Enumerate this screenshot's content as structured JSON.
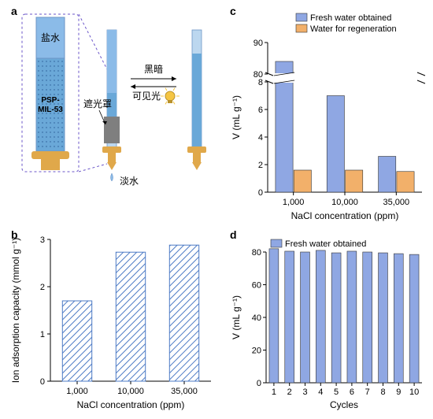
{
  "panel_a": {
    "label": "a",
    "brine_label": "盐水",
    "shade_label": "遮光罩",
    "material_label": "PSP-\nMIL-53",
    "freshwater_label": "淡水",
    "dark_label": "黑暗",
    "visible_label": "可见光",
    "colors": {
      "tube_light": "#bcd7ef",
      "tube_water": "#8bbbe8",
      "material_fill": "#6aa8d8",
      "base": "#e0a84a",
      "shade": "#7f7f7f",
      "callout": "#6b56c9",
      "text": "#000000",
      "bulb": "#f5c542"
    }
  },
  "panel_b": {
    "label": "b",
    "type": "bar",
    "categories": [
      "1,000",
      "10,000",
      "35,000"
    ],
    "values": [
      1.7,
      2.73,
      2.88
    ],
    "bar_color": "#7ea6dd",
    "hatch_color": "#4d7bc5",
    "xlabel": "NaCl concentration (ppm)",
    "ylabel": "Ion adsorption capacity (mmol g⁻¹)",
    "ylim": [
      0,
      3
    ],
    "y_ticks": [
      0,
      1,
      2,
      3
    ],
    "label_fontsize": 12,
    "tick_fontsize": 11,
    "axis_color": "#000000",
    "background": "#ffffff",
    "bar_width": 0.55
  },
  "panel_c": {
    "label": "c",
    "type": "bar-grouped-broken",
    "categories": [
      "1,000",
      "10,000",
      "35,000"
    ],
    "series": [
      {
        "name": "Fresh water obtained",
        "color": "#8fa7e3",
        "values": [
          84,
          7.0,
          2.6
        ]
      },
      {
        "name": "Water for regeneration",
        "color": "#f2b06a",
        "values": [
          1.6,
          1.6,
          1.5
        ]
      }
    ],
    "xlabel": "NaCl concentration (ppm)",
    "ylabel": "V (mL g⁻¹)",
    "lower_ylim": [
      0,
      8
    ],
    "lower_ticks": [
      0,
      2,
      4,
      6,
      8
    ],
    "upper_ylim": [
      80,
      90
    ],
    "upper_ticks": [
      80,
      90
    ],
    "label_fontsize": 12,
    "tick_fontsize": 11,
    "axis_color": "#000000",
    "legend_fontsize": 11,
    "bar_width": 0.34
  },
  "panel_d": {
    "label": "d",
    "type": "bar",
    "categories": [
      "1",
      "2",
      "3",
      "4",
      "5",
      "6",
      "7",
      "8",
      "9",
      "10"
    ],
    "values": [
      82,
      80.5,
      80,
      81,
      79.5,
      80.5,
      80,
      79.5,
      79,
      78.5
    ],
    "series_name": "Fresh water obtained",
    "bar_color": "#8fa7e3",
    "xlabel": "Cycles",
    "ylabel": "V (mL g⁻¹)",
    "ylim": [
      0,
      80
    ],
    "y_ticks": [
      0,
      20,
      40,
      60,
      80
    ],
    "label_fontsize": 12,
    "tick_fontsize": 11,
    "legend_fontsize": 11,
    "axis_color": "#000000",
    "bar_width": 0.6
  }
}
